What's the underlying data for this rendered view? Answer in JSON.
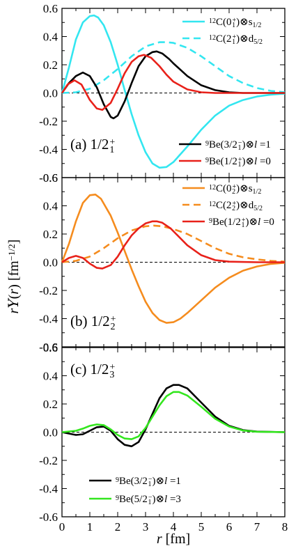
{
  "figure": {
    "ylabel_html": "rY(r) [fm^-1/2]",
    "xlabel": "r [fm]",
    "x_ticks": [
      "0",
      "1",
      "2",
      "3",
      "4",
      "5",
      "6",
      "7",
      "8"
    ],
    "y_ticks": [
      "-0.6",
      "-0.4",
      "-0.2",
      "0.0",
      "0.2",
      "0.4",
      "0.6"
    ]
  },
  "chart_data": [
    {
      "type": "line",
      "panel_label": "(a) 1/2",
      "panel_label_sub": "1",
      "panel_label_sup": "+",
      "xlim": [
        0,
        8
      ],
      "ylim": [
        -0.6,
        0.6
      ],
      "zero_line": true,
      "series": [
        {
          "name": "12C(0+1)⊗s1/2",
          "legend": {
            "pre": "12",
            "main": "C(0",
            "sup": "+",
            "sub": "1",
            "post": ")⊗s",
            "post_sub": "1/2"
          },
          "color": "#33e6f0",
          "dash": false,
          "x": [
            0,
            0.25,
            0.5,
            0.75,
            1.0,
            1.15,
            1.3,
            1.5,
            1.75,
            2.0,
            2.25,
            2.5,
            2.75,
            3.0,
            3.25,
            3.5,
            3.75,
            4.0,
            4.5,
            5.0,
            5.5,
            6.0,
            6.5,
            7.0,
            7.5,
            8.0
          ],
          "y": [
            0.0,
            0.18,
            0.38,
            0.5,
            0.545,
            0.55,
            0.535,
            0.48,
            0.36,
            0.2,
            0.02,
            -0.15,
            -0.3,
            -0.42,
            -0.5,
            -0.53,
            -0.525,
            -0.49,
            -0.38,
            -0.26,
            -0.16,
            -0.09,
            -0.05,
            -0.025,
            -0.012,
            -0.005
          ]
        },
        {
          "name": "12C(2+1)⊗d5/2",
          "legend": {
            "pre": "12",
            "main": "C(2",
            "sup": "+",
            "sub": "1",
            "post": ")⊗d",
            "post_sub": "5/2"
          },
          "color": "#33e6f0",
          "dash": true,
          "x": [
            0,
            0.5,
            1.0,
            1.5,
            2.0,
            2.5,
            3.0,
            3.5,
            3.75,
            4.0,
            4.5,
            5.0,
            5.5,
            6.0,
            6.5,
            7.0,
            7.5,
            8.0
          ],
          "y": [
            0.0,
            0.005,
            0.03,
            0.09,
            0.17,
            0.26,
            0.33,
            0.36,
            0.36,
            0.355,
            0.32,
            0.26,
            0.19,
            0.12,
            0.07,
            0.035,
            0.015,
            0.005
          ]
        },
        {
          "name": "9Be(3/2-1)⊗l=1",
          "legend": {
            "pre": "9",
            "main": "Be(3/2",
            "sup": "−",
            "sub": "1",
            "post": ")⊗",
            "post_italic": "l",
            "post2": " =1"
          },
          "color": "#000000",
          "dash": false,
          "x": [
            0,
            0.25,
            0.5,
            0.75,
            1.0,
            1.25,
            1.5,
            1.75,
            1.85,
            2.0,
            2.25,
            2.5,
            2.75,
            3.0,
            3.25,
            3.4,
            3.6,
            3.85,
            4.0,
            4.5,
            5.0,
            5.5,
            6.0,
            6.5,
            7.0,
            8.0
          ],
          "y": [
            0.0,
            0.07,
            0.12,
            0.145,
            0.12,
            0.04,
            -0.08,
            -0.17,
            -0.18,
            -0.16,
            -0.06,
            0.07,
            0.19,
            0.26,
            0.29,
            0.295,
            0.28,
            0.24,
            0.21,
            0.12,
            0.055,
            0.02,
            0.005,
            0.0,
            0.0,
            0.0
          ]
        },
        {
          "name": "9Be(1/2+1)⊗l=0",
          "legend": {
            "pre": "9",
            "main": "Be(1/2",
            "sup": "+",
            "sub": "1",
            "post": ")⊗",
            "post_italic": "l",
            "post2": " =0"
          },
          "color": "#e8211a",
          "dash": false,
          "x": [
            0,
            0.2,
            0.45,
            0.7,
            1.0,
            1.25,
            1.45,
            1.75,
            2.0,
            2.25,
            2.5,
            2.75,
            2.95,
            3.2,
            3.5,
            3.75,
            4.0,
            4.5,
            5.0,
            5.5,
            6.0,
            7.0,
            8.0
          ],
          "y": [
            0.0,
            0.06,
            0.09,
            0.06,
            -0.05,
            -0.11,
            -0.12,
            -0.07,
            0.03,
            0.14,
            0.22,
            0.26,
            0.27,
            0.25,
            0.19,
            0.13,
            0.08,
            0.025,
            0.005,
            0.0,
            0.0,
            0.0,
            0.0
          ]
        }
      ]
    },
    {
      "type": "line",
      "panel_label": "(b) 1/2",
      "panel_label_sub": "2",
      "panel_label_sup": "+",
      "xlim": [
        0,
        8
      ],
      "ylim": [
        -0.6,
        0.6
      ],
      "zero_line": true,
      "series": [
        {
          "name": "12C(0+2)⊗s1/2",
          "legend": {
            "pre": "12",
            "main": "C(0",
            "sup": "+",
            "sub": "2",
            "post": ")⊗s",
            "post_sub": "1/2"
          },
          "color": "#f58c1e",
          "dash": false,
          "x": [
            0,
            0.25,
            0.5,
            0.75,
            1.0,
            1.2,
            1.4,
            1.75,
            2.0,
            2.25,
            2.5,
            2.75,
            3.0,
            3.25,
            3.5,
            3.75,
            4.0,
            4.25,
            4.5,
            5.0,
            5.5,
            6.0,
            6.5,
            7.0,
            7.5,
            8.0
          ],
          "y": [
            0.0,
            0.13,
            0.29,
            0.42,
            0.475,
            0.48,
            0.45,
            0.33,
            0.21,
            0.08,
            -0.05,
            -0.17,
            -0.28,
            -0.36,
            -0.41,
            -0.43,
            -0.425,
            -0.4,
            -0.36,
            -0.27,
            -0.18,
            -0.11,
            -0.06,
            -0.03,
            -0.012,
            -0.004
          ]
        },
        {
          "name": "12C(2+2)⊗d5/2",
          "legend": {
            "pre": "12",
            "main": "C(2",
            "sup": "+",
            "sub": "2",
            "post": ")⊗d",
            "post_sub": "5/2"
          },
          "color": "#f58c1e",
          "dash": true,
          "x": [
            0,
            0.5,
            1.0,
            1.5,
            2.0,
            2.5,
            3.0,
            3.3,
            3.6,
            4.0,
            4.5,
            5.0,
            5.5,
            6.0,
            6.5,
            7.0,
            7.5,
            8.0
          ],
          "y": [
            0.0,
            0.01,
            0.04,
            0.1,
            0.17,
            0.225,
            0.255,
            0.26,
            0.255,
            0.235,
            0.2,
            0.15,
            0.1,
            0.06,
            0.035,
            0.02,
            0.01,
            0.004
          ]
        },
        {
          "name": "9Be(1/2+1)⊗l=0",
          "legend": {
            "pre": "9",
            "main": "Be(1/2",
            "sup": "+",
            "sub": "1",
            "post": ")⊗",
            "post_italic": "l",
            "post2": " =0"
          },
          "color": "#e8211a",
          "dash": false,
          "x": [
            0,
            0.25,
            0.5,
            0.75,
            1.0,
            1.25,
            1.45,
            1.75,
            2.0,
            2.25,
            2.5,
            2.75,
            3.0,
            3.25,
            3.4,
            3.6,
            3.9,
            4.25,
            4.5,
            5.0,
            5.5,
            6.0,
            7.0,
            8.0
          ],
          "y": [
            0.0,
            0.03,
            0.045,
            0.03,
            -0.01,
            -0.04,
            -0.045,
            -0.02,
            0.04,
            0.12,
            0.19,
            0.24,
            0.275,
            0.29,
            0.29,
            0.28,
            0.24,
            0.17,
            0.12,
            0.05,
            0.015,
            0.004,
            0.0,
            0.0
          ]
        }
      ]
    },
    {
      "type": "line",
      "panel_label": "(c) 1/2",
      "panel_label_sub": "3",
      "panel_label_sup": "+",
      "xlim": [
        0,
        8
      ],
      "ylim": [
        -0.6,
        0.6
      ],
      "zero_line": true,
      "series": [
        {
          "name": "9Be(3/2-1)⊗l=1",
          "legend": {
            "pre": "9",
            "main": "Be(3/2",
            "sup": "−",
            "sub": "1",
            "post": ")⊗",
            "post_italic": "l",
            "post2": " =1"
          },
          "color": "#000000",
          "dash": false,
          "x": [
            0,
            0.25,
            0.5,
            0.75,
            1.0,
            1.25,
            1.5,
            1.75,
            2.0,
            2.25,
            2.5,
            2.75,
            3.0,
            3.25,
            3.5,
            3.75,
            4.0,
            4.2,
            4.5,
            5.0,
            5.5,
            6.0,
            6.5,
            7.0,
            8.0
          ],
          "y": [
            0.0,
            -0.01,
            -0.02,
            -0.015,
            0.01,
            0.035,
            0.04,
            0.01,
            -0.05,
            -0.09,
            -0.1,
            -0.07,
            0.02,
            0.13,
            0.24,
            0.31,
            0.335,
            0.335,
            0.31,
            0.21,
            0.11,
            0.045,
            0.015,
            0.004,
            0.0
          ]
        },
        {
          "name": "9Be(5/2-1)⊗l=3",
          "legend": {
            "pre": "9",
            "main": "Be(5/2",
            "sup": "−",
            "sub": "1",
            "post": ")⊗",
            "post_italic": "l",
            "post2": " =3"
          },
          "color": "#33e61e",
          "dash": false,
          "x": [
            0,
            0.25,
            0.5,
            0.75,
            1.0,
            1.25,
            1.5,
            1.75,
            2.0,
            2.25,
            2.5,
            2.75,
            3.0,
            3.25,
            3.5,
            3.75,
            4.0,
            4.2,
            4.5,
            5.0,
            5.5,
            6.0,
            6.5,
            7.0,
            8.0
          ],
          "y": [
            0.0,
            0.005,
            0.01,
            0.025,
            0.045,
            0.055,
            0.05,
            0.02,
            -0.02,
            -0.045,
            -0.05,
            -0.03,
            0.03,
            0.11,
            0.19,
            0.255,
            0.285,
            0.285,
            0.26,
            0.18,
            0.095,
            0.04,
            0.012,
            0.003,
            0.0
          ]
        }
      ]
    }
  ]
}
